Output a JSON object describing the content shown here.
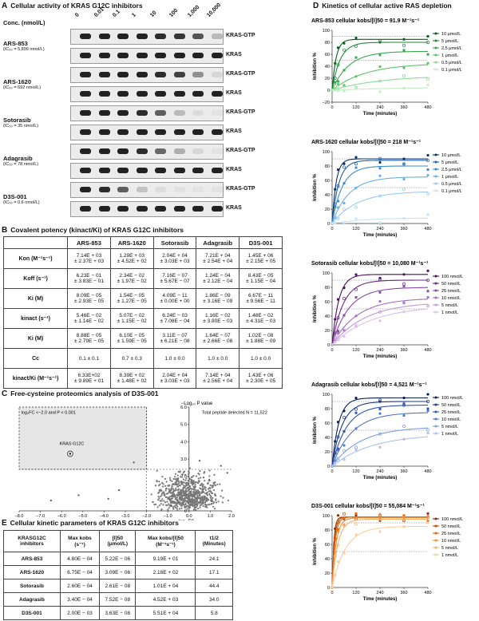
{
  "panelA": {
    "letter": "A",
    "title": "Cellular activity of KRAS G12C inhibitors",
    "conc_label": "Conc. (nmol/L)",
    "concentrations": [
      "0",
      "0.01",
      "0.1",
      "1",
      "10",
      "100",
      "1,000",
      "10,000"
    ],
    "row_labels": {
      "gtp": "KRAS-GTP",
      "total": "KRAS"
    },
    "compounds": [
      {
        "name": "ARS-853",
        "ic50": "(IC₅₀ = 5,899 nmol/L)",
        "gtp": [
          1,
          1,
          1,
          1,
          0.95,
          0.9,
          0.75,
          0.25
        ],
        "total": [
          1,
          1,
          1,
          1,
          1,
          1,
          1,
          1
        ]
      },
      {
        "name": "ARS-1620",
        "ic50": "(IC₅₀ = 692 nmol/L)",
        "gtp": [
          1,
          1,
          1,
          1,
          0.95,
          0.85,
          0.45,
          0.1
        ],
        "total": [
          1,
          1,
          1,
          1,
          1,
          1,
          1,
          1
        ]
      },
      {
        "name": "Sotorasib",
        "ic50": "(IC₅₀ = 35 nmol/L)",
        "gtp": [
          1,
          1,
          1,
          0.95,
          0.7,
          0.25,
          0.08,
          0.05
        ],
        "total": [
          1,
          1,
          1,
          1,
          1,
          1,
          1,
          1
        ]
      },
      {
        "name": "Adagrasib",
        "ic50": "(IC₅₀ = 78 nmol/L)",
        "gtp": [
          1,
          1,
          1,
          0.95,
          0.65,
          0.3,
          0.1,
          0.05
        ],
        "total": [
          1,
          1,
          1,
          1,
          1,
          1,
          1,
          1
        ]
      },
      {
        "name": "D3S-001",
        "ic50": "(IC₅₀ = 0.6 nmol/L)",
        "gtp": [
          1,
          0.95,
          0.7,
          0.2,
          0.08,
          0.05,
          0.05,
          0.05
        ],
        "total": [
          1,
          1,
          1,
          1,
          1,
          1,
          1,
          1
        ]
      }
    ]
  },
  "panelB": {
    "letter": "B",
    "title": "Covalent potency (kinact/Ki) of KRAS G12C inhibitors",
    "headers": [
      "",
      "ARS-853",
      "ARS-1620",
      "Sotorasib",
      "Adagrasib",
      "D3S-001"
    ],
    "rows": [
      {
        "label": "Kon (M⁻¹s⁻¹)",
        "cells": [
          [
            "7.14E + 03",
            "± 2.37E + 03"
          ],
          [
            "1.29E + 03",
            "± 4.52E + 02"
          ],
          [
            "2.04E + 04",
            "± 3.03E + 03"
          ],
          [
            "7.21E + 04",
            "± 2.54E + 04"
          ],
          [
            "1.45E + 06",
            "± 2.15E + 05"
          ]
        ]
      },
      {
        "label": "Koff (s⁻¹)",
        "cells": [
          [
            "6.23E − 01",
            "± 3.83E − 01"
          ],
          [
            "2.34E − 02",
            "± 1.97E − 02"
          ],
          [
            "7.16E − 07",
            "± 5.67E − 07"
          ],
          [
            "1.24E − 04",
            "± 2.12E − 04"
          ],
          [
            "8.43E − 05",
            "± 1.15E − 04"
          ]
        ]
      },
      {
        "label": "Ki (M)",
        "cells": [
          [
            "8.09E − 05",
            "± 2.93E − 05"
          ],
          [
            "1.54E − 05",
            "± 1.27E − 05"
          ],
          [
            "4.09E − 11",
            "± 0.00E + 00"
          ],
          [
            "1.86E − 09",
            "± 3.16E − 09"
          ],
          [
            "6.67E − 11",
            "± 9.56E − 11"
          ]
        ]
      },
      {
        "label": "kinact (s⁻¹)",
        "cells": [
          [
            "5.46E − 02",
            "± 1.14E − 02"
          ],
          [
            "5.07E − 02",
            "± 1.15E − 02"
          ],
          [
            "6.24E − 03",
            "± 7.08E − 04"
          ],
          [
            "1.16E − 02",
            "± 3.80E − 03"
          ],
          [
            "1.48E − 02",
            "± 4.31E − 03"
          ]
        ]
      },
      {
        "label": "Ki (M)",
        "cells": [
          [
            "8.88E − 05",
            "± 2.79E − 05"
          ],
          [
            "6.10E − 05",
            "± 1.59E − 05"
          ],
          [
            "3.11E − 07",
            "± 6.21E − 08"
          ],
          [
            "1.64E − 07",
            "± 2.66E − 08"
          ],
          [
            "1.02E − 08",
            "± 1.88E − 09"
          ]
        ]
      },
      {
        "label": "Cc",
        "cells": [
          [
            "0.1 ± 0.1"
          ],
          [
            "0.7 ± 0.3"
          ],
          [
            "1.0 ± 0.0"
          ],
          [
            "1.0 ± 0.0"
          ],
          [
            "1.0 ± 0.0"
          ]
        ]
      },
      {
        "label": "kinact/Ki (M⁻¹s⁻¹)",
        "cells": [
          [
            "6.33E+02",
            "± 9.89E + 01"
          ],
          [
            "8.39E + 02",
            "± 1.48E + 02"
          ],
          [
            "2.04E + 04",
            "± 3.03E + 03"
          ],
          [
            "7.14E + 04",
            "± 2.56E + 04"
          ],
          [
            "1.43E + 06",
            "± 2.30E + 05"
          ]
        ]
      }
    ]
  },
  "panelC": {
    "letter": "C",
    "title": "Free-cysteine proteomics analysis of D3S-001",
    "ylabel": "−Log₁₀ P value",
    "xlabel": "log₂ FC",
    "box_label": "log₂FC <−2.0 and P < 0.001",
    "total_label": "Total peptide detected N = 11,522",
    "hit_label": "KRAS G12C",
    "yticks": [
      "0",
      "1.0",
      "2.0",
      "3.0",
      "4.0",
      "5.0",
      "6.0"
    ],
    "xticks": [
      "−8.0",
      "−7.0",
      "−6.0",
      "−5.0",
      "−4.0",
      "−3.0",
      "−2.0",
      "−1.0",
      "0.0",
      "1.0",
      "2.0"
    ]
  },
  "panelD": {
    "letter": "D",
    "title": "Kinetics of cellular active RAS depletion",
    "ylabel": "Inhibition %",
    "xlabel": "Time (minutes)",
    "xticks": [
      "0",
      "120",
      "240",
      "360",
      "480"
    ],
    "subplots": [
      {
        "title": "ARS-853 cellular kobs/[I]50 = 91.9 M⁻¹s⁻¹",
        "yticks": [
          "−20",
          "0",
          "20",
          "40",
          "60",
          "80",
          "100"
        ],
        "ymin": -20,
        "ymax": 100,
        "legend": [
          "10 μmol/L",
          "5 μmol/L",
          "2.5 μmol/L",
          "1 μmol/L",
          "0.5 μmol/L",
          "0.1 μmol/L"
        ],
        "colors": [
          "#0b5d1e",
          "#1e8a3a",
          "#3aa84f",
          "#5cc26a",
          "#8fd99a",
          "#c4edc6"
        ],
        "plateau": [
          85,
          80,
          65,
          45,
          25,
          5
        ],
        "rate": [
          0.05,
          0.025,
          0.012,
          0.006,
          0.004,
          0.003
        ]
      },
      {
        "title": "ARS-1620 cellular kobs/[I]50 = 218 M⁻¹s⁻¹",
        "yticks": [
          "0",
          "20",
          "40",
          "60",
          "80",
          "100"
        ],
        "ymin": 0,
        "ymax": 100,
        "legend": [
          "10 μmol/L",
          "5 μmol/L",
          "2.5 μmol/L",
          "1 μmol/L",
          "0.5 μmol/L",
          "0.1 μmol/L"
        ],
        "colors": [
          "#08306b",
          "#1f5fa6",
          "#3c8cc7",
          "#67b0df",
          "#9ccbed",
          "#c8e2f6"
        ],
        "plateau": [
          90,
          88,
          80,
          65,
          45,
          8
        ],
        "rate": [
          0.05,
          0.03,
          0.02,
          0.012,
          0.008,
          0.006
        ]
      },
      {
        "title": "Sotorasib cellular kobs/[I]50 = 10,080 M⁻¹s⁻¹",
        "yticks": [
          "0",
          "20",
          "40",
          "60",
          "80",
          "100"
        ],
        "ymin": 0,
        "ymax": 100,
        "legend": [
          "100 nmol/L",
          "50 nmol/L",
          "25 nmol/L",
          "10 nmol/L",
          "5 nmol/L",
          "1 nmol/L"
        ],
        "colors": [
          "#4a0f5c",
          "#6b2a86",
          "#8a4aa6",
          "#a66fbf",
          "#c198d6",
          "#dbc2e8"
        ],
        "plateau": [
          98,
          90,
          80,
          65,
          60,
          55
        ],
        "rate": [
          0.03,
          0.018,
          0.012,
          0.008,
          0.006,
          0.005
        ]
      },
      {
        "title": "Adagrasib cellular kobs/[I]50 = 4,521 M⁻¹s⁻¹",
        "yticks": [
          "0",
          "20",
          "40",
          "60",
          "80",
          "100"
        ],
        "ymin": 0,
        "ymax": 100,
        "legend": [
          "100 nmol/L",
          "50 nmol/L",
          "25 nmol/L",
          "10 nmol/L",
          "5 nmol/L",
          "1 nmol/L"
        ],
        "colors": [
          "#0c1f5c",
          "#1b3a8a",
          "#2f57b0",
          "#4f78c8",
          "#7d9ddc",
          "#adc2ec"
        ],
        "plateau": [
          95,
          90,
          85,
          75,
          55,
          45
        ],
        "rate": [
          0.03,
          0.02,
          0.014,
          0.01,
          0.007,
          0.005
        ]
      },
      {
        "title": "D3S-001 cellular kobs/[I]50 = 55,084 M⁻¹s⁻¹",
        "yticks": [
          "0",
          "20",
          "40",
          "60",
          "80",
          "100"
        ],
        "ymin": 0,
        "ymax": 100,
        "legend": [
          "100 nmol/L",
          "50 nmol/L",
          "25 nmol/L",
          "10 nmol/L",
          "5 nmol/L",
          "1 nmol/L"
        ],
        "colors": [
          "#8a2c00",
          "#c24a00",
          "#e86b0a",
          "#f2903a",
          "#f7b06b",
          "#fbcf9c"
        ],
        "plateau": [
          98,
          98,
          98,
          97,
          95,
          85
        ],
        "rate": [
          0.12,
          0.09,
          0.07,
          0.05,
          0.035,
          0.015
        ]
      }
    ]
  },
  "panelE": {
    "letter": "E",
    "title": "Cellular kinetic parameters of KRAS G12C inhibitors",
    "headers": [
      "KRASG12C inhibitors",
      "Max kobs (s⁻¹)",
      "[I]50 (μmol/L)",
      "Max kobs/[I]50 (M⁻¹s⁻¹)",
      "t1/2 (Minutes)"
    ],
    "rows": [
      [
        "ARS-853",
        "4.80E − 04",
        "5.22E − 06",
        "9.19E + 01",
        "24.1"
      ],
      [
        "ARS-1620",
        "6.75E − 04",
        "3.09E − 06",
        "2.18E + 02",
        "17.1"
      ],
      [
        "Sotorasib",
        "2.60E − 04",
        "2.61E − 08",
        "1.01E + 04",
        "44.4"
      ],
      [
        "Adagrasib",
        "3.40E − 04",
        "7.52E − 08",
        "4.52E + 03",
        "34.0"
      ],
      [
        "D3S-001",
        "2.00E − 03",
        "3.63E − 08",
        "5.51E + 04",
        "5.8"
      ]
    ]
  }
}
